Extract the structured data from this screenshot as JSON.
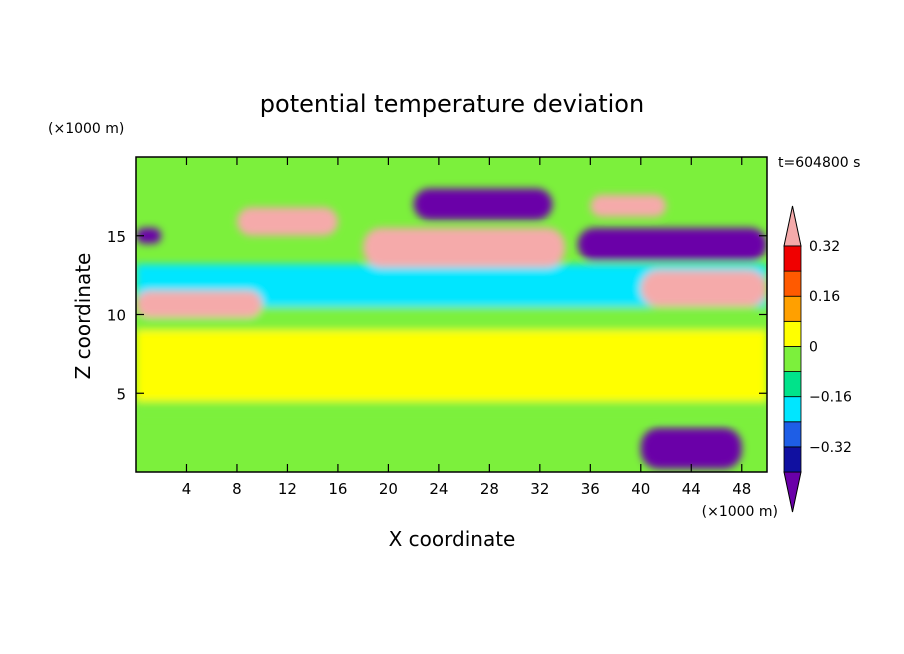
{
  "chart_data": {
    "type": "heatmap",
    "title": "potential temperature deviation",
    "xlabel": "X coordinate",
    "ylabel": "Z coordinate",
    "x_unit": "(×1000 m)",
    "y_unit": "(×1000 m)",
    "time_label": "t=604800 s",
    "xlim": [
      0,
      50
    ],
    "ylim": [
      0,
      20
    ],
    "xticks": [
      4,
      8,
      12,
      16,
      20,
      24,
      28,
      32,
      36,
      40,
      44,
      48
    ],
    "yticks": [
      5,
      10,
      15
    ],
    "colorbar": {
      "levels": [
        -0.4,
        -0.32,
        -0.24,
        -0.16,
        -0.08,
        0,
        0.08,
        0.16,
        0.24,
        0.32,
        0.4
      ],
      "labeled_ticks": [
        -0.32,
        -0.16,
        0,
        0.16,
        0.32
      ],
      "colors": [
        "#6a00a8",
        "#1010a0",
        "#1e5ee6",
        "#00e6ff",
        "#00e38a",
        "#7cf03c",
        "#ffff00",
        "#ffa000",
        "#ff5a00",
        "#f00000",
        "#f5aaaa"
      ],
      "extend": "both"
    },
    "grid": false,
    "features": [
      {
        "value": 0.4,
        "x": [
          8,
          16
        ],
        "z": [
          15,
          16.8
        ]
      },
      {
        "value": 0.4,
        "x": [
          18,
          34
        ],
        "z": [
          13,
          15.5
        ]
      },
      {
        "value": 0.4,
        "x": [
          36,
          42
        ],
        "z": [
          16.2,
          17.6
        ]
      },
      {
        "value": 0.4,
        "x": [
          0,
          10
        ],
        "z": [
          9.8,
          11.5
        ]
      },
      {
        "value": 0.4,
        "x": [
          40,
          50
        ],
        "z": [
          10.5,
          12.8
        ]
      },
      {
        "value": -0.4,
        "x": [
          22,
          33
        ],
        "z": [
          16,
          18
        ]
      },
      {
        "value": -0.4,
        "x": [
          35,
          50
        ],
        "z": [
          13.4,
          15.5
        ]
      },
      {
        "value": -0.4,
        "x": [
          0,
          2
        ],
        "z": [
          14.5,
          15.5
        ]
      },
      {
        "value": -0.4,
        "x": [
          40,
          48
        ],
        "z": [
          0.2,
          2.8
        ]
      },
      {
        "value": -0.16,
        "x": [
          0,
          50
        ],
        "z": [
          10.5,
          13.2
        ]
      },
      {
        "value": 0,
        "x": [
          0,
          50
        ],
        "z": [
          3.5,
          10.5
        ]
      },
      {
        "value": 0.08,
        "x": [
          0,
          50
        ],
        "z": [
          4.5,
          9
        ]
      }
    ]
  }
}
